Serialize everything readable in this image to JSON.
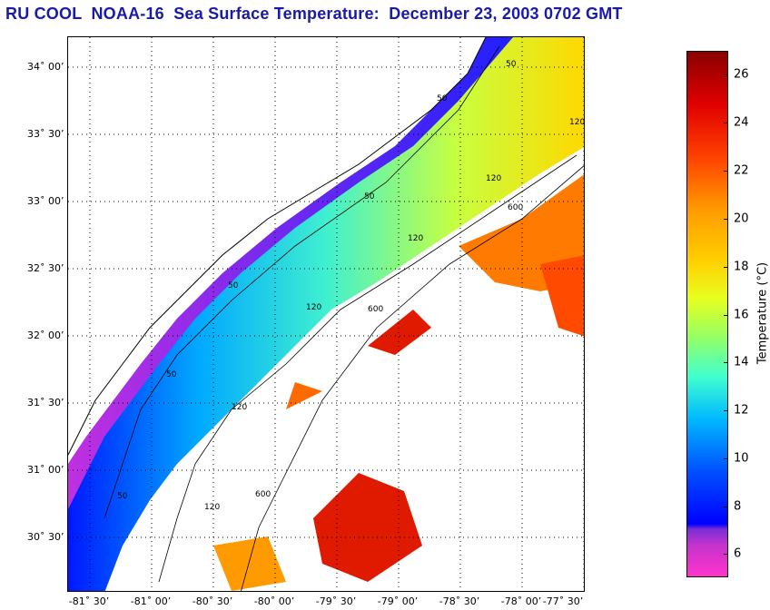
{
  "title": "RU COOL  NOAA-16  Sea Surface Temperature:  December 23, 2003 0702 GMT",
  "map": {
    "lat_labels": [
      "34˚ 00’",
      "33˚ 30’",
      "33˚ 00’",
      "32˚ 30’",
      "32˚ 00’",
      "31˚ 30’",
      "31˚ 00’",
      "30˚ 30’"
    ],
    "lon_labels": [
      "-81˚ 30’",
      "-81˚ 00’",
      "-80˚ 30’",
      "-80˚ 00’",
      "-79˚ 30’",
      "-79˚ 00’",
      "-78˚ 30’",
      "-78˚ 00’",
      "-77˚ 30’"
    ],
    "contour_labels": [
      "50",
      "50",
      "50",
      "50",
      "50",
      "50",
      "120",
      "120",
      "120",
      "120",
      "120",
      "120",
      "600",
      "600",
      "600"
    ]
  },
  "colorbar": {
    "ticks": [
      "26",
      "24",
      "22",
      "20",
      "18",
      "16",
      "14",
      "12",
      "10",
      "8",
      "6"
    ],
    "label": "Temperature (°C)"
  },
  "colors": {
    "title": "#1a1aa8",
    "land": "#ffffff",
    "cloud": "#ffffff"
  }
}
